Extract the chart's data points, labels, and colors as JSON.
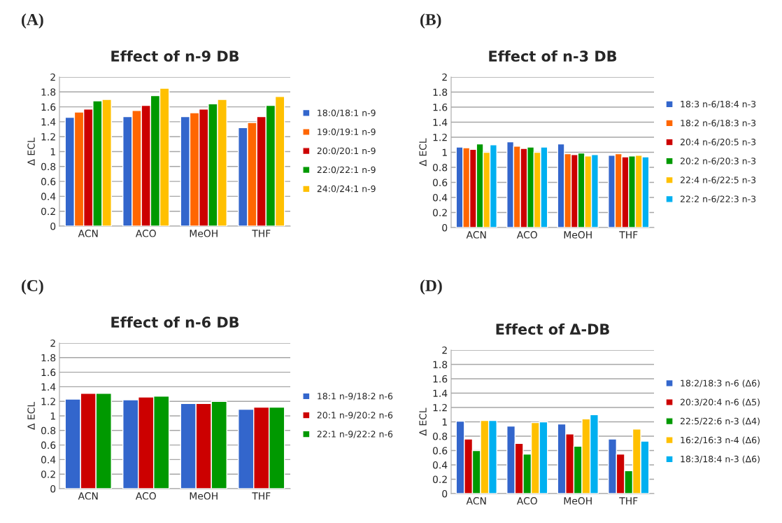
{
  "chart_data": [
    {
      "type": "bar",
      "title": "Effect of n-9 DB",
      "ylabel": "Δ ECL",
      "annotations": [
        "(A)"
      ],
      "categories": [
        "ACN",
        "ACO",
        "MeOH",
        "THF"
      ],
      "ylim": [
        0,
        2
      ],
      "yticks": [
        0,
        0.2,
        0.4,
        0.6,
        0.8,
        1,
        1.2,
        1.4,
        1.6,
        1.8,
        2
      ],
      "grid": "y",
      "legend": "right",
      "series": [
        {
          "name": "18:0/18:1 n-9",
          "color": "#3366cc",
          "values": [
            1.46,
            1.47,
            1.47,
            1.32
          ]
        },
        {
          "name": "19:0/19:1 n-9",
          "color": "#ff6600",
          "values": [
            1.53,
            1.55,
            1.52,
            1.39
          ]
        },
        {
          "name": "20:0/20:1 n-9",
          "color": "#cc0000",
          "values": [
            1.57,
            1.62,
            1.57,
            1.47
          ]
        },
        {
          "name": "22:0/22:1 n-9",
          "color": "#009900",
          "values": [
            1.68,
            1.75,
            1.64,
            1.62
          ]
        },
        {
          "name": "24:0/24:1 n-9",
          "color": "#ffc000",
          "values": [
            1.7,
            1.85,
            1.7,
            1.74
          ]
        }
      ]
    },
    {
      "type": "bar",
      "title": "Effect of n-3 DB",
      "ylabel": "Δ ECL",
      "annotations": [
        "(B)"
      ],
      "categories": [
        "ACN",
        "ACO",
        "MeOH",
        "THF"
      ],
      "ylim": [
        0,
        2
      ],
      "yticks": [
        0,
        0.2,
        0.4,
        0.6,
        0.8,
        1,
        1.2,
        1.4,
        1.6,
        1.8,
        2
      ],
      "grid": "y",
      "legend": "right",
      "series": [
        {
          "name": "18:3 n-6/18:4 n-3",
          "color": "#3366cc",
          "values": [
            1.07,
            1.14,
            1.11,
            0.96
          ]
        },
        {
          "name": "18:2 n-6/18:3 n-3",
          "color": "#ff6600",
          "values": [
            1.06,
            1.08,
            0.98,
            0.98
          ]
        },
        {
          "name": "20:4 n-6/20:5 n-3",
          "color": "#cc0000",
          "values": [
            1.04,
            1.05,
            0.97,
            0.94
          ]
        },
        {
          "name": "20:2 n-6/20:3 n-3",
          "color": "#009900",
          "values": [
            1.11,
            1.07,
            0.99,
            0.95
          ]
        },
        {
          "name": "22:4 n-6/22:5 n-3",
          "color": "#ffc000",
          "values": [
            1.0,
            1.0,
            0.95,
            0.96
          ]
        },
        {
          "name": "22:2 n-6/22:3 n-3",
          "color": "#00b0f0",
          "values": [
            1.1,
            1.07,
            0.97,
            0.94
          ]
        }
      ]
    },
    {
      "type": "bar",
      "title": "Effect of n-6 DB",
      "ylabel": "Δ ECL",
      "annotations": [
        "(C)"
      ],
      "categories": [
        "ACN",
        "ACO",
        "MeOH",
        "THF"
      ],
      "ylim": [
        0,
        2
      ],
      "yticks": [
        0,
        0.2,
        0.4,
        0.6,
        0.8,
        1,
        1.2,
        1.4,
        1.6,
        1.8,
        2
      ],
      "grid": "y",
      "legend": "right",
      "series": [
        {
          "name": "18:1 n-9/18:2 n-6",
          "color": "#3366cc",
          "values": [
            1.23,
            1.22,
            1.17,
            1.09
          ]
        },
        {
          "name": "20:1 n-9/20:2 n-6",
          "color": "#cc0000",
          "values": [
            1.31,
            1.26,
            1.17,
            1.12
          ]
        },
        {
          "name": "22:1 n-9/22:2 n-6",
          "color": "#009900",
          "values": [
            1.31,
            1.27,
            1.2,
            1.12
          ]
        }
      ]
    },
    {
      "type": "bar",
      "title": "Effect of Δ-DB",
      "ylabel": "Δ ECL",
      "annotations": [
        "(D)"
      ],
      "categories": [
        "ACN",
        "ACO",
        "MeOH",
        "THF"
      ],
      "ylim": [
        0,
        2
      ],
      "yticks": [
        0,
        0.2,
        0.4,
        0.6,
        0.8,
        1,
        1.2,
        1.4,
        1.6,
        1.8,
        2
      ],
      "grid": "y",
      "legend": "right",
      "series": [
        {
          "name": "18:2/18:3 n-6 (Δ6)",
          "color": "#3366cc",
          "values": [
            1.01,
            0.94,
            0.97,
            0.76
          ]
        },
        {
          "name": "20:3/20:4 n-6 (Δ5)",
          "color": "#cc0000",
          "values": [
            0.76,
            0.7,
            0.83,
            0.55
          ]
        },
        {
          "name": "22:5/22:6 n-3 (Δ4)",
          "color": "#009900",
          "values": [
            0.6,
            0.55,
            0.66,
            0.32
          ]
        },
        {
          "name": "16:2/16:3 n-4 (Δ6)",
          "color": "#ffc000",
          "values": [
            1.02,
            0.99,
            1.04,
            0.9
          ]
        },
        {
          "name": "18:3/18:4 n-3 (Δ6)",
          "color": "#00b0f0",
          "values": [
            1.02,
            1.0,
            1.1,
            0.73
          ]
        }
      ]
    }
  ]
}
